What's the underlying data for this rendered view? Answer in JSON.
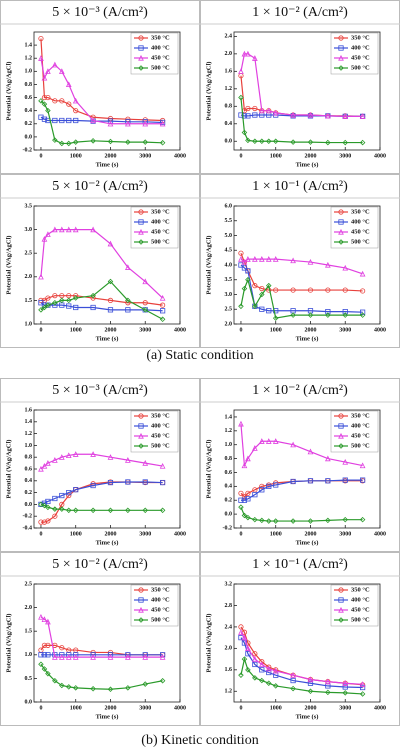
{
  "chart_data": [
    {
      "type": "line",
      "title": "5 × 10⁻³ (A/cm²)",
      "x_label": "Time (s)",
      "y_label": "Potential (VAg/AgCl)",
      "x": [
        0,
        100,
        200,
        400,
        600,
        800,
        1000,
        1500,
        2000,
        2500,
        3000,
        3500
      ],
      "xlim": [
        -200,
        4000
      ],
      "xticks": [
        0,
        1000,
        2000,
        3000,
        4000
      ],
      "ylim": [
        -0.2,
        1.6
      ],
      "yticks": [
        -0.2,
        {
          "value": 0,
          "label": "0.0"
        },
        0.2,
        0.4,
        0.6,
        0.8,
        {
          "value": 1,
          "label": "1.0"
        },
        1.2,
        1.4
      ],
      "series": [
        {
          "name": "350 °C",
          "color": "#e8413c",
          "marker": "circle",
          "values": [
            1.5,
            0.6,
            0.6,
            0.55,
            0.55,
            0.5,
            0.4,
            0.3,
            0.28,
            0.27,
            0.26,
            0.25
          ]
        },
        {
          "name": "400 °C",
          "color": "#3b4fd8",
          "marker": "square",
          "values": [
            0.3,
            0.27,
            0.25,
            0.25,
            0.25,
            0.25,
            0.25,
            0.24,
            0.24,
            0.23,
            0.23,
            0.22
          ]
        },
        {
          "name": "450 °C",
          "color": "#e040e0",
          "marker": "triangle",
          "values": [
            1.2,
            0.9,
            1.0,
            1.1,
            1.0,
            0.8,
            0.55,
            0.25,
            0.2,
            0.2,
            0.2,
            0.2
          ]
        },
        {
          "name": "500 °C",
          "color": "#2a9a2a",
          "marker": "diamond",
          "values": [
            0.55,
            0.5,
            0.4,
            -0.05,
            -0.1,
            -0.1,
            -0.08,
            -0.06,
            -0.07,
            -0.08,
            -0.08,
            -0.09
          ]
        }
      ]
    },
    {
      "type": "line",
      "title": "1 × 10⁻² (A/cm²)",
      "x_label": "Time (s)",
      "y_label": "Potential (VAg/AgCl)",
      "x": [
        0,
        100,
        200,
        400,
        600,
        800,
        1000,
        1500,
        2000,
        2500,
        3000,
        3500
      ],
      "xlim": [
        -200,
        4000
      ],
      "xticks": [
        0,
        1000,
        2000,
        3000,
        4000
      ],
      "ylim": [
        -0.2,
        2.5
      ],
      "yticks": [
        {
          "value": 0,
          "label": "0.0"
        },
        0.4,
        0.8,
        1.2,
        1.6,
        {
          "value": 2,
          "label": "2.0"
        },
        2.4
      ],
      "series": [
        {
          "name": "350 °C",
          "color": "#e8413c",
          "marker": "circle",
          "values": [
            1.5,
            0.7,
            0.75,
            0.75,
            0.7,
            0.7,
            0.65,
            0.6,
            0.6,
            0.58,
            0.58,
            0.57
          ]
        },
        {
          "name": "400 °C",
          "color": "#3b4fd8",
          "marker": "square",
          "values": [
            0.6,
            0.58,
            0.58,
            0.6,
            0.6,
            0.6,
            0.6,
            0.58,
            0.58,
            0.58,
            0.57,
            0.57
          ]
        },
        {
          "name": "450 °C",
          "color": "#e040e0",
          "marker": "triangle",
          "values": [
            1.6,
            2.0,
            2.0,
            1.9,
            0.7,
            0.7,
            0.65,
            0.6,
            0.6,
            0.58,
            0.57,
            0.57
          ]
        },
        {
          "name": "500 °C",
          "color": "#2a9a2a",
          "marker": "diamond",
          "values": [
            1.0,
            0.2,
            0.02,
            0.0,
            0.0,
            0.0,
            0.0,
            -0.02,
            -0.02,
            -0.03,
            -0.03,
            -0.03
          ]
        }
      ]
    },
    {
      "type": "line",
      "title": "5 × 10⁻² (A/cm²)",
      "x_label": "Time (s)",
      "y_label": "Potential (VAg/AgCl)",
      "x": [
        0,
        100,
        200,
        400,
        600,
        800,
        1000,
        1500,
        2000,
        2500,
        3000,
        3500
      ],
      "xlim": [
        -200,
        4000
      ],
      "xticks": [
        0,
        1000,
        2000,
        3000,
        4000
      ],
      "ylim": [
        1,
        3.5
      ],
      "yticks": [
        {
          "value": 1,
          "label": "1.0"
        },
        1.5,
        {
          "value": 2,
          "label": "2.0"
        },
        2.5,
        {
          "value": 3,
          "label": "3.0"
        },
        3.5
      ],
      "series": [
        {
          "name": "350 °C",
          "color": "#e8413c",
          "marker": "circle",
          "values": [
            1.5,
            1.5,
            1.55,
            1.6,
            1.6,
            1.6,
            1.6,
            1.55,
            1.5,
            1.45,
            1.45,
            1.4
          ]
        },
        {
          "name": "400 °C",
          "color": "#3b4fd8",
          "marker": "square",
          "values": [
            1.45,
            1.4,
            1.4,
            1.4,
            1.4,
            1.38,
            1.35,
            1.35,
            1.3,
            1.3,
            1.3,
            1.28
          ]
        },
        {
          "name": "450 °C",
          "color": "#e040e0",
          "marker": "triangle",
          "values": [
            2.0,
            2.8,
            2.9,
            3.0,
            3.0,
            3.0,
            3.0,
            3.0,
            2.7,
            2.2,
            1.9,
            1.55
          ]
        },
        {
          "name": "500 °C",
          "color": "#2a9a2a",
          "marker": "diamond",
          "values": [
            1.3,
            1.35,
            1.4,
            1.45,
            1.5,
            1.5,
            1.55,
            1.6,
            1.9,
            1.5,
            1.3,
            1.1
          ]
        }
      ]
    },
    {
      "type": "line",
      "title": "1 × 10⁻¹ (A/cm²)",
      "x_label": "Time (s)",
      "y_label": "Potential (VAg/AgCl)",
      "x": [
        0,
        100,
        200,
        400,
        600,
        800,
        1000,
        1500,
        2000,
        2500,
        3000,
        3500
      ],
      "xlim": [
        -200,
        4000
      ],
      "xticks": [
        0,
        1000,
        2000,
        3000,
        4000
      ],
      "ylim": [
        2,
        6
      ],
      "yticks": [
        {
          "value": 2,
          "label": "2.0"
        },
        2.5,
        {
          "value": 3,
          "label": "3.0"
        },
        3.5,
        {
          "value": 4,
          "label": "4.0"
        },
        4.5,
        {
          "value": 5,
          "label": "5.0"
        },
        5.5,
        {
          "value": 6,
          "label": "6.0"
        }
      ],
      "series": [
        {
          "name": "350 °C",
          "color": "#e8413c",
          "marker": "circle",
          "values": [
            4.4,
            4.1,
            3.8,
            3.3,
            3.2,
            3.15,
            3.15,
            3.15,
            3.15,
            3.15,
            3.15,
            3.12
          ]
        },
        {
          "name": "400 °C",
          "color": "#3b4fd8",
          "marker": "square",
          "values": [
            4.0,
            3.9,
            3.8,
            2.6,
            2.5,
            2.45,
            2.45,
            2.45,
            2.45,
            2.42,
            2.42,
            2.4
          ]
        },
        {
          "name": "450 °C",
          "color": "#e040e0",
          "marker": "triangle",
          "values": [
            4.2,
            4.1,
            4.2,
            4.2,
            4.2,
            4.2,
            4.2,
            4.15,
            4.1,
            4.0,
            3.9,
            3.7
          ]
        },
        {
          "name": "500 °C",
          "color": "#2a9a2a",
          "marker": "diamond",
          "values": [
            2.6,
            3.2,
            3.5,
            2.6,
            3.0,
            3.3,
            2.2,
            2.3,
            2.3,
            2.3,
            2.3,
            2.3
          ]
        }
      ]
    },
    {
      "type": "line",
      "title": "5 × 10⁻³ (A/cm²)",
      "x_label": "Time (s)",
      "y_label": "Potential (VAg/AgCl)",
      "x": [
        0,
        100,
        200,
        400,
        600,
        800,
        1000,
        1500,
        2000,
        2500,
        3000,
        3500
      ],
      "xlim": [
        -200,
        4000
      ],
      "xticks": [
        0,
        1000,
        2000,
        3000,
        4000
      ],
      "ylim": [
        -0.4,
        1.6
      ],
      "yticks": [
        -0.4,
        -0.2,
        {
          "value": 0,
          "label": "0.0"
        },
        0.2,
        0.4,
        0.6,
        0.8,
        {
          "value": 1,
          "label": "1.0"
        },
        1.2,
        1.4,
        1.6
      ],
      "series": [
        {
          "name": "350 °C",
          "color": "#e8413c",
          "marker": "circle",
          "values": [
            -0.3,
            -0.3,
            -0.28,
            -0.2,
            0.0,
            0.15,
            0.25,
            0.35,
            0.38,
            0.38,
            0.37,
            0.37
          ]
        },
        {
          "name": "400 °C",
          "color": "#3b4fd8",
          "marker": "square",
          "values": [
            0.0,
            0.02,
            0.05,
            0.1,
            0.15,
            0.2,
            0.25,
            0.32,
            0.37,
            0.38,
            0.38,
            0.37
          ]
        },
        {
          "name": "450 °C",
          "color": "#e040e0",
          "marker": "triangle",
          "values": [
            0.6,
            0.65,
            0.7,
            0.75,
            0.8,
            0.83,
            0.85,
            0.85,
            0.8,
            0.75,
            0.7,
            0.65
          ]
        },
        {
          "name": "500 °C",
          "color": "#2a9a2a",
          "marker": "diamond",
          "values": [
            0.0,
            -0.02,
            -0.05,
            -0.08,
            -0.08,
            -0.1,
            -0.1,
            -0.1,
            -0.1,
            -0.1,
            -0.1,
            -0.1
          ]
        }
      ]
    },
    {
      "type": "line",
      "title": "1 × 10⁻² (A/cm²)",
      "x_label": "Time (s)",
      "y_label": "Potential (VAg/AgCl)",
      "x": [
        0,
        100,
        200,
        400,
        600,
        800,
        1000,
        1500,
        2000,
        2500,
        3000,
        3500
      ],
      "xlim": [
        -200,
        4000
      ],
      "xticks": [
        0,
        1000,
        2000,
        3000,
        4000
      ],
      "ylim": [
        -0.2,
        1.5
      ],
      "yticks": [
        -0.2,
        {
          "value": 0,
          "label": "0.0"
        },
        0.2,
        0.4,
        0.6,
        0.8,
        {
          "value": 1,
          "label": "1.0"
        },
        1.2,
        1.4
      ],
      "series": [
        {
          "name": "350 °C",
          "color": "#e8413c",
          "marker": "circle",
          "values": [
            0.3,
            0.25,
            0.3,
            0.35,
            0.4,
            0.42,
            0.45,
            0.47,
            0.48,
            0.48,
            0.48,
            0.48
          ]
        },
        {
          "name": "400 °C",
          "color": "#3b4fd8",
          "marker": "square",
          "values": [
            0.2,
            0.2,
            0.22,
            0.28,
            0.35,
            0.4,
            0.42,
            0.47,
            0.48,
            0.48,
            0.49,
            0.49
          ]
        },
        {
          "name": "450 °C",
          "color": "#e040e0",
          "marker": "triangle",
          "values": [
            1.3,
            0.7,
            0.8,
            0.95,
            1.05,
            1.05,
            1.05,
            1.0,
            0.9,
            0.8,
            0.75,
            0.7
          ]
        },
        {
          "name": "500 °C",
          "color": "#2a9a2a",
          "marker": "diamond",
          "values": [
            0.1,
            -0.02,
            -0.05,
            -0.08,
            -0.09,
            -0.1,
            -0.1,
            -0.1,
            -0.1,
            -0.09,
            -0.08,
            -0.08
          ]
        }
      ]
    },
    {
      "type": "line",
      "title": "5 × 10⁻² (A/cm²)",
      "x_label": "Time (s)",
      "y_label": "Potential (VAg/AgCl)",
      "x": [
        0,
        100,
        200,
        400,
        600,
        800,
        1000,
        1500,
        2000,
        2500,
        3000,
        3500
      ],
      "xlim": [
        -200,
        4000
      ],
      "xticks": [
        0,
        1000,
        2000,
        3000,
        4000
      ],
      "ylim": [
        0,
        2.5
      ],
      "yticks": [
        {
          "value": 0,
          "label": "0.0"
        },
        0.5,
        {
          "value": 1,
          "label": "1.0"
        },
        1.5,
        {
          "value": 2,
          "label": "2.0"
        },
        2.5
      ],
      "series": [
        {
          "name": "350 °C",
          "color": "#e8413c",
          "marker": "circle",
          "values": [
            1.1,
            1.2,
            1.2,
            1.2,
            1.15,
            1.1,
            1.1,
            1.05,
            1.05,
            1.0,
            1.0,
            1.0
          ]
        },
        {
          "name": "400 °C",
          "color": "#3b4fd8",
          "marker": "square",
          "values": [
            1.0,
            1.0,
            1.0,
            1.0,
            1.0,
            1.0,
            1.0,
            1.0,
            1.0,
            1.0,
            1.0,
            1.0
          ]
        },
        {
          "name": "450 °C",
          "color": "#e040e0",
          "marker": "triangle",
          "values": [
            1.8,
            1.75,
            1.7,
            0.95,
            0.95,
            0.95,
            0.95,
            0.95,
            0.95,
            0.95,
            0.95,
            0.95
          ]
        },
        {
          "name": "500 °C",
          "color": "#2a9a2a",
          "marker": "diamond",
          "values": [
            0.8,
            0.7,
            0.6,
            0.45,
            0.35,
            0.32,
            0.3,
            0.28,
            0.27,
            0.3,
            0.38,
            0.45
          ]
        }
      ]
    },
    {
      "type": "line",
      "title": "1 × 10⁻¹ (A/cm²)",
      "x_label": "Time (s)",
      "y_label": "Potential (VAg/AgCl)",
      "x": [
        0,
        100,
        200,
        400,
        600,
        800,
        1000,
        1500,
        2000,
        2500,
        3000,
        3500
      ],
      "xlim": [
        -200,
        4000
      ],
      "xticks": [
        0,
        1000,
        2000,
        3000,
        4000
      ],
      "ylim": [
        1,
        3.2
      ],
      "yticks": [
        1.2,
        1.6,
        {
          "value": 2,
          "label": "2.0"
        },
        2.4,
        2.8,
        3.2
      ],
      "series": [
        {
          "name": "350 °C",
          "color": "#e8413c",
          "marker": "circle",
          "values": [
            2.4,
            2.3,
            2.1,
            1.9,
            1.75,
            1.65,
            1.6,
            1.5,
            1.42,
            1.38,
            1.35,
            1.32
          ]
        },
        {
          "name": "400 °C",
          "color": "#3b4fd8",
          "marker": "square",
          "values": [
            2.2,
            2.1,
            1.9,
            1.7,
            1.6,
            1.55,
            1.5,
            1.4,
            1.35,
            1.3,
            1.28,
            1.27
          ]
        },
        {
          "name": "450 °C",
          "color": "#e040e0",
          "marker": "triangle",
          "values": [
            2.3,
            2.2,
            2.0,
            1.8,
            1.7,
            1.62,
            1.58,
            1.5,
            1.42,
            1.38,
            1.35,
            1.33
          ]
        },
        {
          "name": "500 °C",
          "color": "#2a9a2a",
          "marker": "diamond",
          "values": [
            1.5,
            1.8,
            1.6,
            1.45,
            1.4,
            1.35,
            1.3,
            1.25,
            1.2,
            1.18,
            1.17,
            1.15
          ]
        }
      ]
    }
  ],
  "captions": [
    "(a)  Static condition",
    "(b)  Kinetic condition"
  ]
}
